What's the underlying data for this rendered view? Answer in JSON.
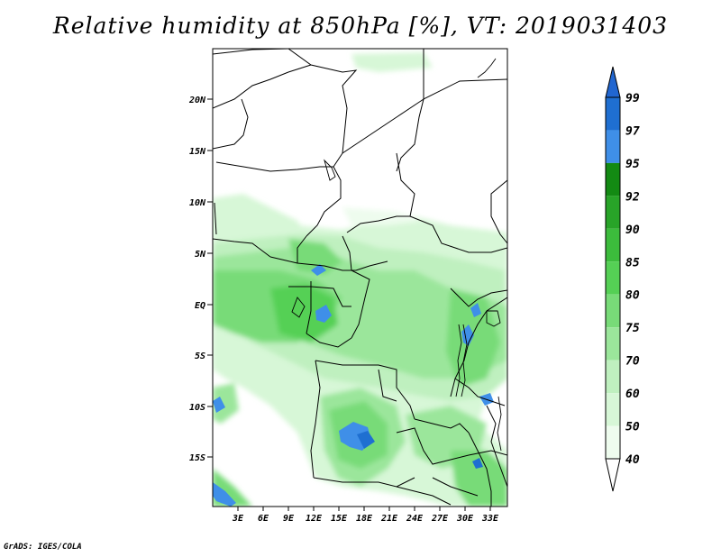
{
  "title": "Relative humidity at 850hPa [%], VT: 2019031403",
  "credit": "GrADS: IGES/COLA",
  "lat_ticks": [
    "20N",
    "15N",
    "10N",
    "5N",
    "EQ",
    "5S",
    "10S",
    "15S"
  ],
  "lon_ticks": [
    "3E",
    "6E",
    "9E",
    "12E",
    "15E",
    "18E",
    "21E",
    "24E",
    "27E",
    "30E",
    "33E"
  ],
  "colorbar": {
    "labels": [
      "99",
      "97",
      "95",
      "92",
      "90",
      "85",
      "80",
      "75",
      "70",
      "60",
      "50",
      "40"
    ],
    "colors": [
      "#1f6fd1",
      "#1f6fd1",
      "#3f8fe8",
      "#138a13",
      "#28a428",
      "#3cbc3c",
      "#55d055",
      "#78db78",
      "#9be69b",
      "#bff0bf",
      "#d7f7d7",
      "#eefcee"
    ],
    "top_color": "#2166d0",
    "bottom_color": "#ffffff"
  },
  "map": {
    "lon_range": [
      0,
      35
    ],
    "lat_range": [
      -20,
      25
    ],
    "variable": "Relative humidity",
    "level": "850hPa",
    "units": "%",
    "valid_time": "2019031403"
  }
}
